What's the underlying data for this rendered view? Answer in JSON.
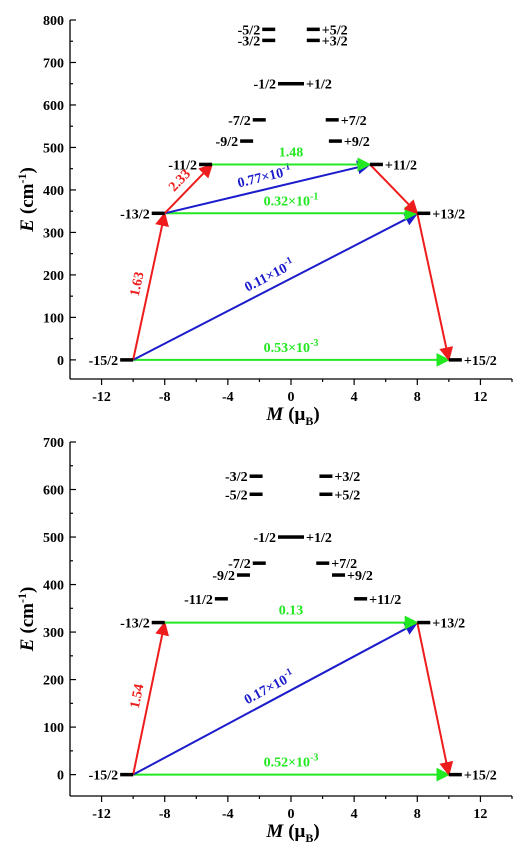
{
  "colors": {
    "red": "#ee1c1c",
    "blue": "#1c1ccc",
    "green": "#22e822",
    "black": "#000000"
  },
  "chart_data": [
    {
      "type": "scatter",
      "xlabel_main": "M",
      "xlabel_unit": "(μ",
      "xlabel_sub": "B",
      "xlabel_close": ")",
      "ylabel_main": "E",
      "ylabel_unit": "(cm",
      "ylabel_sup": "-1",
      "ylabel_close": ")",
      "xlim": [
        -14,
        14
      ],
      "ylim": [
        -45,
        800
      ],
      "xticks": [
        -12,
        -8,
        -4,
        0,
        4,
        8,
        12
      ],
      "yticks": [
        0,
        100,
        200,
        300,
        400,
        500,
        600,
        700,
        800
      ],
      "levels": [
        {
          "label": "-15/2",
          "m": -10,
          "e": 0,
          "side": "left"
        },
        {
          "label": "+15/2",
          "m": 10,
          "e": 0,
          "side": "right"
        },
        {
          "label": "-13/2",
          "m": -8,
          "e": 345,
          "side": "left"
        },
        {
          "label": "+13/2",
          "m": 8,
          "e": 345,
          "side": "right"
        },
        {
          "label": "-11/2",
          "m": -5,
          "e": 460,
          "side": "left"
        },
        {
          "label": "+11/2",
          "m": 5,
          "e": 460,
          "side": "right"
        },
        {
          "label": "-9/2",
          "m": -2.4,
          "e": 515,
          "side": "left"
        },
        {
          "label": "+9/2",
          "m": 2.4,
          "e": 515,
          "side": "right"
        },
        {
          "label": "-7/2",
          "m": -1.6,
          "e": 565,
          "side": "left"
        },
        {
          "label": "+7/2",
          "m": 2.2,
          "e": 565,
          "side": "right"
        },
        {
          "label": "-1/2",
          "m": 0,
          "e": 650,
          "side": "left"
        },
        {
          "label": "+1/2",
          "m": 0,
          "e": 650,
          "side": "right"
        },
        {
          "label": "-3/2",
          "m": -1.0,
          "e": 752,
          "side": "left"
        },
        {
          "label": "+3/2",
          "m": 1.0,
          "e": 752,
          "side": "right"
        },
        {
          "label": "-5/2",
          "m": -1.0,
          "e": 778,
          "side": "left"
        },
        {
          "label": "+5/2",
          "m": 1.0,
          "e": 778,
          "side": "right"
        }
      ],
      "transitions": [
        {
          "from": [
            -10,
            0
          ],
          "to": [
            10,
            0
          ],
          "color": "green",
          "label": "0.53×10",
          "sup": "-3"
        },
        {
          "from": [
            -10,
            0
          ],
          "to": [
            8,
            345
          ],
          "color": "blue",
          "label": "0.11×10",
          "sup": "-1"
        },
        {
          "from": [
            -10,
            0
          ],
          "to": [
            -8,
            345
          ],
          "color": "red",
          "label": "1.63",
          "sup": ""
        },
        {
          "from": [
            -8,
            345
          ],
          "to": [
            8,
            345
          ],
          "color": "green",
          "label": "0.32×10",
          "sup": "-1"
        },
        {
          "from": [
            -8,
            345
          ],
          "to": [
            5,
            460
          ],
          "color": "blue",
          "label": "0.77×10",
          "sup": "-1"
        },
        {
          "from": [
            -8,
            345
          ],
          "to": [
            -5,
            460
          ],
          "color": "red",
          "label": "2.33",
          "sup": ""
        },
        {
          "from": [
            -5,
            460
          ],
          "to": [
            5,
            460
          ],
          "color": "green",
          "label": "1.48",
          "sup": ""
        },
        {
          "from": [
            5,
            460
          ],
          "to": [
            8,
            345
          ],
          "color": "red",
          "label": "",
          "sup": ""
        },
        {
          "from": [
            8,
            345
          ],
          "to": [
            10,
            0
          ],
          "color": "red",
          "label": "",
          "sup": ""
        }
      ]
    },
    {
      "type": "scatter",
      "xlabel_main": "M",
      "xlabel_unit": "(μ",
      "xlabel_sub": "B",
      "xlabel_close": ")",
      "ylabel_main": "E",
      "ylabel_unit": "(cm",
      "ylabel_sup": "-1",
      "ylabel_close": ")",
      "xlim": [
        -14,
        14
      ],
      "ylim": [
        -45,
        700
      ],
      "xticks": [
        -12,
        -8,
        -4,
        0,
        4,
        8,
        12
      ],
      "yticks": [
        0,
        100,
        200,
        300,
        400,
        500,
        600,
        700
      ],
      "levels": [
        {
          "label": "-15/2",
          "m": -10,
          "e": 0,
          "side": "left"
        },
        {
          "label": "+15/2",
          "m": 10,
          "e": 0,
          "side": "right"
        },
        {
          "label": "-13/2",
          "m": -8,
          "e": 320,
          "side": "left"
        },
        {
          "label": "+13/2",
          "m": 8,
          "e": 320,
          "side": "right"
        },
        {
          "label": "-11/2",
          "m": -4,
          "e": 370,
          "side": "left"
        },
        {
          "label": "+11/2",
          "m": 4,
          "e": 370,
          "side": "right"
        },
        {
          "label": "-9/2",
          "m": -2.6,
          "e": 420,
          "side": "left"
        },
        {
          "label": "+9/2",
          "m": 2.6,
          "e": 420,
          "side": "right"
        },
        {
          "label": "-7/2",
          "m": -1.6,
          "e": 445,
          "side": "left"
        },
        {
          "label": "+7/2",
          "m": 1.6,
          "e": 445,
          "side": "right"
        },
        {
          "label": "-1/2",
          "m": 0,
          "e": 500,
          "side": "left"
        },
        {
          "label": "+1/2",
          "m": 0,
          "e": 500,
          "side": "right"
        },
        {
          "label": "-5/2",
          "m": -1.8,
          "e": 590,
          "side": "left"
        },
        {
          "label": "+5/2",
          "m": 1.8,
          "e": 590,
          "side": "right"
        },
        {
          "label": "-3/2",
          "m": -1.8,
          "e": 628,
          "side": "left"
        },
        {
          "label": "+3/2",
          "m": 1.8,
          "e": 628,
          "side": "right"
        }
      ],
      "transitions": [
        {
          "from": [
            -10,
            0
          ],
          "to": [
            10,
            0
          ],
          "color": "green",
          "label": "0.52×10",
          "sup": "-3"
        },
        {
          "from": [
            -10,
            0
          ],
          "to": [
            8,
            320
          ],
          "color": "blue",
          "label": "0.17×10",
          "sup": "-1"
        },
        {
          "from": [
            -10,
            0
          ],
          "to": [
            -8,
            320
          ],
          "color": "red",
          "label": "1.54",
          "sup": ""
        },
        {
          "from": [
            -8,
            320
          ],
          "to": [
            8,
            320
          ],
          "color": "green",
          "label": "0.13",
          "sup": ""
        },
        {
          "from": [
            8,
            320
          ],
          "to": [
            10,
            0
          ],
          "color": "red",
          "label": "",
          "sup": ""
        }
      ]
    }
  ]
}
